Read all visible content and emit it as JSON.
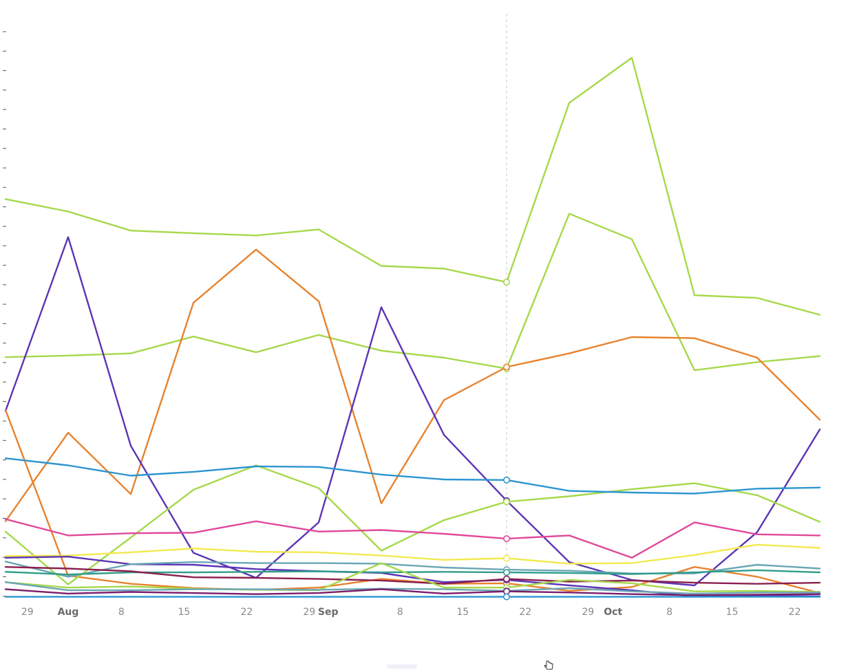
{
  "chart_data": {
    "type": "line",
    "title": "",
    "xlabel": "",
    "ylabel": "",
    "ylim": [
      0,
      100
    ],
    "grid": false,
    "legend": "none",
    "hover_index": 8,
    "x_ticks": [
      {
        "label": "29",
        "pos": 0.35,
        "major": false
      },
      {
        "label": "Aug",
        "pos": 1.0,
        "major": true
      },
      {
        "label": "8",
        "pos": 1.85,
        "major": false
      },
      {
        "label": "15",
        "pos": 2.85,
        "major": false
      },
      {
        "label": "22",
        "pos": 3.85,
        "major": false
      },
      {
        "label": "29",
        "pos": 4.85,
        "major": false
      },
      {
        "label": "Sep",
        "pos": 5.15,
        "major": true
      },
      {
        "label": "8",
        "pos": 6.3,
        "major": false
      },
      {
        "label": "15",
        "pos": 7.3,
        "major": false
      },
      {
        "label": "22",
        "pos": 8.3,
        "major": false
      },
      {
        "label": "29",
        "pos": 9.3,
        "major": false
      },
      {
        "label": "Oct",
        "pos": 9.7,
        "major": true
      },
      {
        "label": "8",
        "pos": 10.6,
        "major": false
      },
      {
        "label": "15",
        "pos": 11.6,
        "major": false
      },
      {
        "label": "22",
        "pos": 12.6,
        "major": false
      }
    ],
    "series": [
      {
        "color": "#a6d84a",
        "values": [
          73.5,
          71.2,
          67.7,
          67.2,
          66.8,
          67.9,
          61.2,
          60.7,
          58.2,
          91.2,
          99.5,
          55.8,
          55.3,
          52.2
        ]
      },
      {
        "color": "#a6d84a",
        "values": [
          44.4,
          44.7,
          45.1,
          48.2,
          45.3,
          48.5,
          45.6,
          44.3,
          42.3,
          70.8,
          66.1,
          42.0,
          43.5,
          44.6
        ]
      },
      {
        "color": "#e8822d",
        "values": [
          14.2,
          30.5,
          19.2,
          54.4,
          64.2,
          54.7,
          17.5,
          36.5,
          42.6,
          45.1,
          48.1,
          47.9,
          44.3,
          32.9
        ]
      },
      {
        "color": "#5b34b5",
        "values": [
          34.5,
          66.5,
          28.1,
          8.4,
          3.8,
          14.0,
          53.6,
          30.1,
          18.0,
          6.7,
          3.4,
          2.4,
          12.2,
          31.1
        ]
      },
      {
        "color": "#e8822d",
        "values": [
          34.7,
          4.2,
          2.7,
          1.9,
          1.6,
          2.0,
          3.6,
          2.7,
          2.8,
          1.4,
          2.1,
          5.8,
          4.0,
          1.0
        ]
      },
      {
        "color": "#a6d84a",
        "values": [
          12.3,
          2.6,
          11.2,
          20.0,
          24.5,
          20.3,
          8.8,
          14.4,
          17.8,
          18.8,
          20.1,
          21.2,
          19.0,
          14.1
        ]
      },
      {
        "color": "#2c95d0",
        "values": [
          25.8,
          24.5,
          22.6,
          23.3,
          24.3,
          24.2,
          22.8,
          21.9,
          21.8,
          19.8,
          19.5,
          19.3,
          20.2,
          20.4
        ]
      },
      {
        "color": "#e0489b",
        "values": [
          14.6,
          11.6,
          12.0,
          12.1,
          14.2,
          12.3,
          12.6,
          11.9,
          11.0,
          11.6,
          7.5,
          14.0,
          11.8,
          11.6
        ]
      },
      {
        "color": "#f2e94e",
        "values": [
          7.8,
          7.9,
          8.5,
          9.2,
          8.6,
          8.5,
          7.9,
          7.1,
          7.4,
          6.4,
          6.5,
          8.0,
          9.9,
          9.3
        ]
      },
      {
        "color": "#5b34b5",
        "values": [
          7.5,
          7.7,
          6.3,
          6.2,
          5.4,
          5.0,
          4.7,
          3.0,
          3.4,
          2.4,
          1.5,
          0.4,
          0.5,
          0.4
        ]
      },
      {
        "color": "#6aa6b5",
        "values": [
          6.8,
          4.0,
          6.3,
          6.7,
          6.5,
          6.5,
          6.4,
          5.7,
          5.3,
          5.1,
          4.6,
          4.6,
          6.2,
          5.5
        ]
      },
      {
        "color": "#2f9c8a",
        "values": [
          4.9,
          4.4,
          4.8,
          4.8,
          4.9,
          5.0,
          4.8,
          4.9,
          4.8,
          4.7,
          4.5,
          4.8,
          5.2,
          4.8
        ]
      },
      {
        "color": "#8a1f4e",
        "values": [
          5.8,
          5.5,
          5.0,
          3.9,
          3.8,
          3.6,
          3.3,
          2.7,
          3.6,
          3.1,
          3.3,
          2.9,
          2.7,
          2.9
        ]
      },
      {
        "color": "#a6d84a",
        "values": [
          3.0,
          2.0,
          2.2,
          1.8,
          1.6,
          1.5,
          6.5,
          2.0,
          2.0,
          3.4,
          2.8,
          1.3,
          1.4,
          1.2
        ]
      },
      {
        "color": "#6aa6b5",
        "values": [
          3.0,
          1.5,
          1.5,
          1.7,
          1.7,
          1.6,
          1.8,
          1.7,
          1.4,
          1.9,
          1.3,
          0.9,
          1.1,
          1.1
        ]
      },
      {
        "color": "#7b1c6a",
        "values": [
          1.7,
          0.9,
          1.2,
          1.0,
          0.8,
          1.0,
          1.7,
          0.9,
          1.3,
          1.1,
          0.8,
          0.6,
          0.7,
          0.8
        ]
      },
      {
        "color": "#2c95d0",
        "values": [
          0.3,
          0.3,
          0.3,
          0.3,
          0.3,
          0.3,
          0.3,
          0.3,
          0.3,
          0.3,
          0.3,
          0.3,
          0.3,
          0.3
        ]
      }
    ]
  }
}
